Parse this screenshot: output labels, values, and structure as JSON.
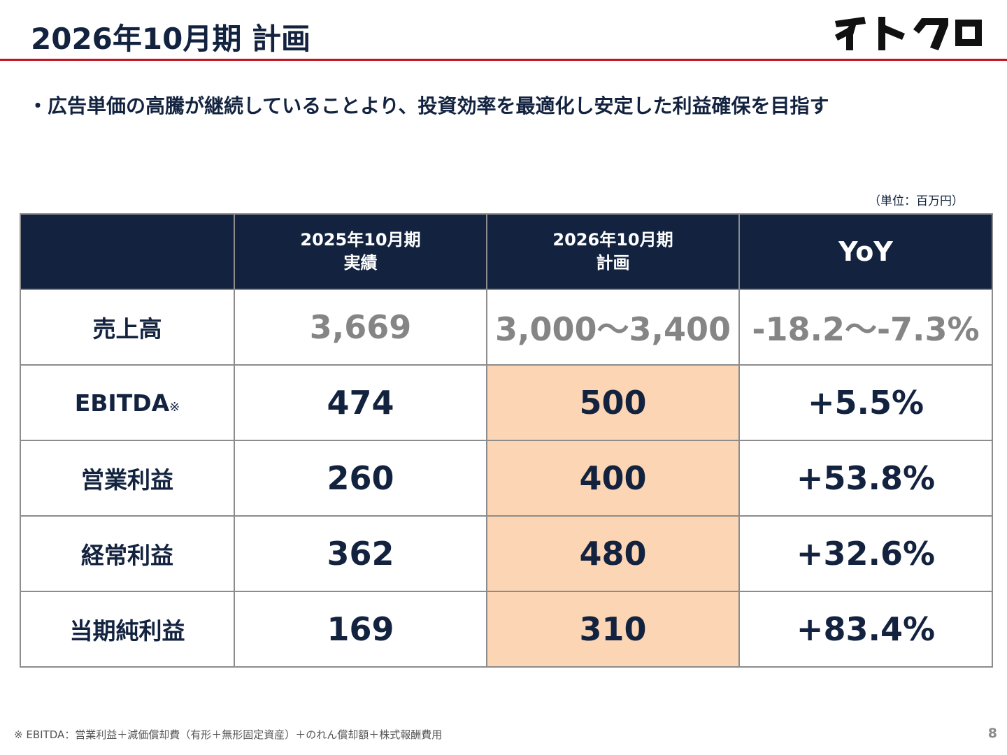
{
  "title": "2026年10月期 計画",
  "logo_text": "イトクロ",
  "bullet": "・広告単価の高騰が継続していることより、投資効率を最適化し安定した利益確保を目指す",
  "unit_note": "（単位：百万円）",
  "table": {
    "headers": {
      "col1_line1": "2025年10月期",
      "col1_line2": "実績",
      "col2_line1": "2026年10月期",
      "col2_line2": "計画",
      "col3": "YoY"
    },
    "rows": [
      {
        "label": "売上高",
        "note_mark": "",
        "actual": "3,669",
        "plan": "3,000〜3,400",
        "yoy": "-18.2〜-7.3%"
      },
      {
        "label": "EBITDA",
        "note_mark": "※",
        "actual": "474",
        "plan": "500",
        "yoy": "+5.5%"
      },
      {
        "label": "営業利益",
        "note_mark": "",
        "actual": "260",
        "plan": "400",
        "yoy": "+53.8%"
      },
      {
        "label": "経常利益",
        "note_mark": "",
        "actual": "362",
        "plan": "480",
        "yoy": "+32.6%"
      },
      {
        "label": "当期純利益",
        "note_mark": "",
        "actual": "169",
        "plan": "310",
        "yoy": "+83.4%"
      }
    ]
  },
  "footnote": "※ EBITDA：営業利益＋減価償却費（有形＋無形固定資産）＋のれん償却額＋株式報酬費用",
  "page_number": "8",
  "colors": {
    "navy": "#13233f",
    "accent_red": "#c0141e",
    "plan_highlight": "#fcd5b4",
    "muted_gray": "#858585"
  }
}
